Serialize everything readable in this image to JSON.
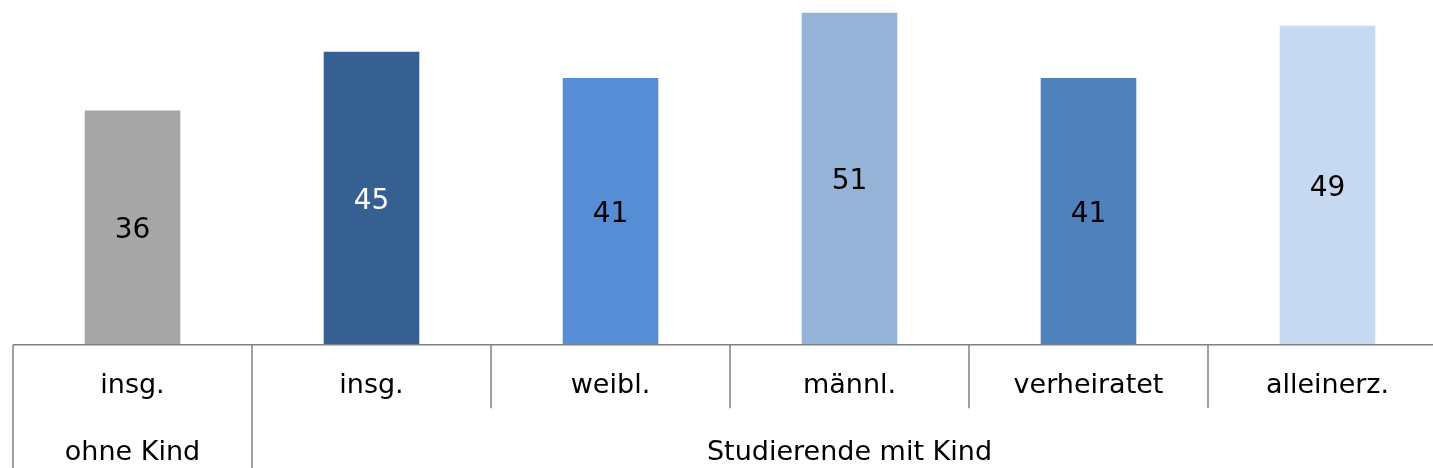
{
  "chart_data": {
    "type": "bar",
    "data_labels": true,
    "categories": [
      "insg.",
      "insg.",
      "weibl.",
      "männl.",
      "verheiratet",
      "alleinerz."
    ],
    "values": [
      36,
      45,
      41,
      51,
      41,
      49
    ],
    "colors": [
      "#a6a6a6",
      "#376092",
      "#558ed5",
      "#95b3d7",
      "#4f81bd",
      "#c6d9f1"
    ],
    "annotations": [
      "ohne Kind",
      "Studierende mit Kind"
    ]
  }
}
